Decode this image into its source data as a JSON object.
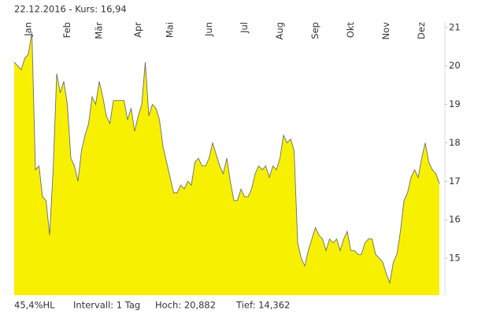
{
  "chart_data": {
    "type": "area",
    "title": "22.12.2016 - Kurs: 16,94",
    "footer": [
      "45,4%HL",
      "Intervall: 1 Tag",
      "Hoch: 20,882",
      "Tief: 14,362"
    ],
    "categories": [
      null,
      null,
      null,
      null,
      "Jan",
      null,
      null,
      null,
      null,
      null,
      null,
      null,
      null,
      null,
      null,
      "Feb",
      null,
      null,
      null,
      null,
      null,
      null,
      null,
      null,
      "Mär",
      null,
      null,
      null,
      null,
      null,
      null,
      null,
      null,
      null,
      null,
      "Apr",
      null,
      null,
      null,
      null,
      null,
      null,
      null,
      null,
      "Mai",
      null,
      null,
      null,
      null,
      null,
      null,
      null,
      null,
      null,
      null,
      "Jun",
      null,
      null,
      null,
      null,
      null,
      null,
      null,
      null,
      null,
      "Jul",
      null,
      null,
      null,
      null,
      null,
      null,
      null,
      null,
      null,
      "Aug",
      null,
      null,
      null,
      null,
      null,
      null,
      null,
      null,
      null,
      "Sep",
      null,
      null,
      null,
      null,
      null,
      null,
      null,
      null,
      null,
      "Okt",
      null,
      null,
      null,
      null,
      null,
      null,
      null,
      null,
      null,
      "Nov",
      null,
      null,
      null,
      null,
      null,
      null,
      null,
      null,
      null,
      "Dez",
      null,
      null,
      null,
      null,
      null
    ],
    "values": [
      20.1,
      20.0,
      19.9,
      20.2,
      20.3,
      20.88,
      17.3,
      17.4,
      16.6,
      16.5,
      15.6,
      17.3,
      19.8,
      19.3,
      19.6,
      19.0,
      17.6,
      17.4,
      17.0,
      17.8,
      18.2,
      18.5,
      19.2,
      19.0,
      19.6,
      19.2,
      18.7,
      18.5,
      19.1,
      19.1,
      19.1,
      19.1,
      18.6,
      18.9,
      18.3,
      18.7,
      19.0,
      20.1,
      18.7,
      19.0,
      18.9,
      18.6,
      17.9,
      17.5,
      17.1,
      16.7,
      16.7,
      16.9,
      16.8,
      17.0,
      16.9,
      17.5,
      17.6,
      17.4,
      17.4,
      17.6,
      18.0,
      17.7,
      17.4,
      17.2,
      17.6,
      17.0,
      16.5,
      16.5,
      16.8,
      16.6,
      16.6,
      16.8,
      17.2,
      17.4,
      17.3,
      17.4,
      17.1,
      17.4,
      17.3,
      17.6,
      18.2,
      18.0,
      18.1,
      17.8,
      15.4,
      15.0,
      14.8,
      15.2,
      15.5,
      15.8,
      15.6,
      15.5,
      15.2,
      15.5,
      15.4,
      15.5,
      15.2,
      15.5,
      15.7,
      15.2,
      15.2,
      15.1,
      15.1,
      15.4,
      15.5,
      15.5,
      15.1,
      15.0,
      14.9,
      14.6,
      14.36,
      14.9,
      15.1,
      15.7,
      16.5,
      16.7,
      17.1,
      17.3,
      17.1,
      17.6,
      18.0,
      17.5,
      17.3,
      17.2,
      16.94
    ],
    "color": "#f7f000",
    "line_color": "#6e6e6e",
    "ylim": [
      14.04,
      21.14
    ],
    "yticks": [
      15,
      16,
      17,
      18,
      19,
      20,
      21
    ]
  }
}
